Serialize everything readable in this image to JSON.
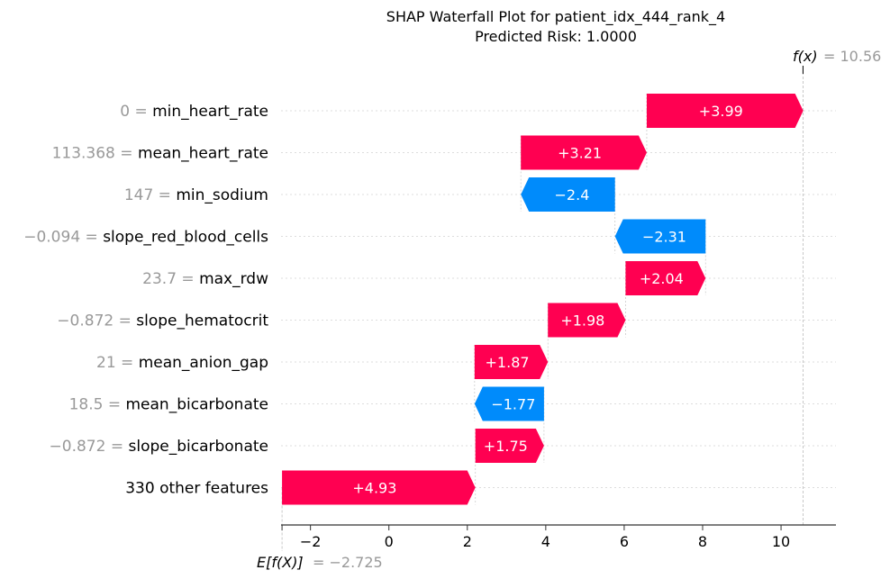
{
  "chart_data": {
    "type": "waterfall",
    "title": "SHAP Waterfall Plot for patient_idx_444_rank_4",
    "subtitle": "Predicted Risk: 1.0000",
    "base_value": -2.725,
    "base_label": "E[f(X)]",
    "base_value_text": "= −2.725",
    "final_value": 10.56,
    "fx_label": "f(x)",
    "fx_value_text": "= 10.56",
    "xlim": [
      -2.75,
      11.4
    ],
    "xticks": [
      {
        "value": -2,
        "label": "−2"
      },
      {
        "value": 0,
        "label": "0"
      },
      {
        "value": 2,
        "label": "2"
      },
      {
        "value": 4,
        "label": "4"
      },
      {
        "value": 6,
        "label": "6"
      },
      {
        "value": 8,
        "label": "8"
      },
      {
        "value": 10,
        "label": "10"
      }
    ],
    "features": [
      {
        "value_text": "0 =",
        "name": "min_heart_rate",
        "shap": 3.99,
        "label": "+3.99"
      },
      {
        "value_text": "113.368 =",
        "name": "mean_heart_rate",
        "shap": 3.21,
        "label": "+3.21"
      },
      {
        "value_text": "147 =",
        "name": "min_sodium",
        "shap": -2.4,
        "label": "−2.4"
      },
      {
        "value_text": "−0.094 =",
        "name": "slope_red_blood_cells",
        "shap": -2.31,
        "label": "−2.31"
      },
      {
        "value_text": "23.7 =",
        "name": "max_rdw",
        "shap": 2.04,
        "label": "+2.04"
      },
      {
        "value_text": "−0.872 =",
        "name": "slope_hematocrit",
        "shap": 1.98,
        "label": "+1.98"
      },
      {
        "value_text": "21 =",
        "name": "mean_anion_gap",
        "shap": 1.87,
        "label": "+1.87"
      },
      {
        "value_text": "18.5 =",
        "name": "mean_bicarbonate",
        "shap": -1.77,
        "label": "−1.77"
      },
      {
        "value_text": "−0.872 =",
        "name": "slope_bicarbonate",
        "shap": 1.75,
        "label": "+1.75"
      },
      {
        "value_text": "",
        "name": "330 other features",
        "shap": 4.93,
        "label": "+4.93"
      }
    ],
    "colors": {
      "positive": "#ff0051",
      "negative": "#008bfb",
      "value_text": "#999999",
      "grid": "#dddddd",
      "axis": "#333333",
      "text": "#000000"
    }
  }
}
